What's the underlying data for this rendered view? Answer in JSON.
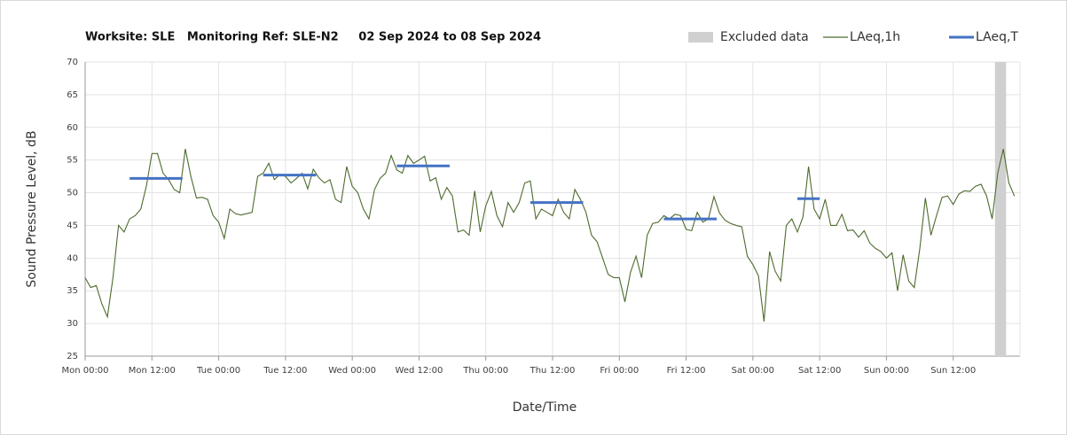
{
  "chart_data": {
    "type": "line",
    "title": "Worksite: SLE   Monitoring Ref: SLE-N2     02 Sep 2024 to 08 Sep 2024",
    "xlabel": "Date/Time",
    "ylabel": "Sound Pressure Level, dB",
    "xlim": [
      0,
      168
    ],
    "ylim": [
      25,
      70
    ],
    "yticks": [
      25,
      30,
      35,
      40,
      45,
      50,
      55,
      60,
      65,
      70
    ],
    "xticks": [
      {
        "value": 0,
        "label": "Mon 00:00"
      },
      {
        "value": 12,
        "label": "Mon 12:00"
      },
      {
        "value": 24,
        "label": "Tue 00:00"
      },
      {
        "value": 36,
        "label": "Tue 12:00"
      },
      {
        "value": 48,
        "label": "Wed 00:00"
      },
      {
        "value": 60,
        "label": "Wed 12:00"
      },
      {
        "value": 72,
        "label": "Thu 00:00"
      },
      {
        "value": 84,
        "label": "Thu 12:00"
      },
      {
        "value": 96,
        "label": "Fri 00:00"
      },
      {
        "value": 108,
        "label": "Fri 12:00"
      },
      {
        "value": 120,
        "label": "Sat 00:00"
      },
      {
        "value": 132,
        "label": "Sat 12:00"
      },
      {
        "value": 144,
        "label": "Sun 00:00"
      },
      {
        "value": 156,
        "label": "Sun 12:00"
      }
    ],
    "grid": true,
    "legend": "top-right",
    "excluded": {
      "name": "Excluded data",
      "color": "#d0d0d0",
      "range": [
        163.5,
        165.5
      ]
    },
    "series": [
      {
        "name": "LAeq,1h",
        "color": "#4e6b2e",
        "x": [
          0,
          1,
          2,
          3,
          4,
          5,
          6,
          7,
          8,
          9,
          10,
          11,
          12,
          13,
          14,
          15,
          16,
          17,
          18,
          19,
          20,
          21,
          22,
          23,
          24,
          25,
          26,
          27,
          28,
          29,
          30,
          31,
          32,
          33,
          34,
          35,
          36,
          37,
          38,
          39,
          40,
          41,
          42,
          43,
          44,
          45,
          46,
          47,
          48,
          49,
          50,
          51,
          52,
          53,
          54,
          55,
          56,
          57,
          58,
          59,
          60,
          61,
          62,
          63,
          64,
          65,
          66,
          67,
          68,
          69,
          70,
          71,
          72,
          73,
          74,
          75,
          76,
          77,
          78,
          79,
          80,
          81,
          82,
          83,
          84,
          85,
          86,
          87,
          88,
          89,
          90,
          91,
          92,
          93,
          94,
          95,
          96,
          97,
          98,
          99,
          100,
          101,
          102,
          103,
          104,
          105,
          106,
          107,
          108,
          109,
          110,
          111,
          112,
          113,
          114,
          115,
          116,
          117,
          118,
          119,
          120,
          121,
          122,
          123,
          124,
          125,
          126,
          127,
          128,
          129,
          130,
          131,
          132,
          133,
          134,
          135,
          136,
          137,
          138,
          139,
          140,
          141,
          142,
          143,
          144,
          145,
          146,
          147,
          148,
          149,
          150,
          151,
          152,
          153,
          154,
          155,
          156,
          157,
          158,
          159,
          160,
          161,
          162,
          163,
          164,
          165,
          166,
          167
        ],
        "values": [
          37,
          35.5,
          35.8,
          33,
          31,
          37,
          45,
          44,
          46,
          46.5,
          47.5,
          51,
          56,
          56,
          53,
          52,
          50.5,
          50,
          56.7,
          52.5,
          49.2,
          49.3,
          49,
          46.5,
          45.5,
          43,
          47.5,
          46.8,
          46.6,
          46.8,
          47,
          52.5,
          53,
          54.5,
          52,
          52.8,
          52.5,
          51.5,
          52.2,
          53,
          50.6,
          53.6,
          52.3,
          51.5,
          52,
          49,
          48.5,
          54,
          51,
          50,
          47.5,
          46,
          50.5,
          52.2,
          53,
          55.7,
          53.5,
          53,
          55.7,
          54.5,
          55,
          55.6,
          51.8,
          52.3,
          49,
          50.8,
          49.5,
          44,
          44.3,
          43.5,
          50.3,
          44,
          48,
          50.2,
          46.5,
          44.8,
          48.5,
          47,
          48.5,
          51.5,
          51.8,
          46,
          47.5,
          47,
          46.5,
          49,
          47,
          46,
          50.5,
          49,
          47,
          43.5,
          42.5,
          40,
          37.5,
          37,
          37,
          33.3,
          37.8,
          40.3,
          37,
          43.5,
          45.3,
          45.5,
          46.5,
          46,
          46.7,
          46.5,
          44.4,
          44.2,
          47,
          45.5,
          46,
          49.4,
          46.9,
          45.8,
          45.3,
          45,
          44.8,
          40.3,
          39,
          37.3,
          30.3,
          41,
          38,
          36.5,
          45,
          46,
          44,
          46.3,
          54,
          47.5,
          46,
          49,
          45,
          45,
          46.7,
          44.2,
          44.3,
          43.2,
          44.2,
          42.3,
          41.5,
          41,
          40,
          40.8,
          35,
          40.5,
          36.5,
          35.5,
          41.5,
          49.2,
          43.5,
          46.5,
          49.3,
          49.5,
          48.2,
          49.8,
          50.3,
          50.2,
          51,
          51.3,
          49.5,
          46,
          53,
          56.7,
          51.5,
          49.5
        ]
      },
      {
        "name": "LAeq,T",
        "color": "#4472c4",
        "periods": [
          {
            "start": 8,
            "end": 17.5,
            "value": 52.2
          },
          {
            "start": 32,
            "end": 41.5,
            "value": 52.7
          },
          {
            "start": 56,
            "end": 65.5,
            "value": 54.1
          },
          {
            "start": 80,
            "end": 89.5,
            "value": 48.5
          },
          {
            "start": 104,
            "end": 113.5,
            "value": 46
          },
          {
            "start": 128,
            "end": 132,
            "value": 49.1
          }
        ]
      }
    ]
  }
}
